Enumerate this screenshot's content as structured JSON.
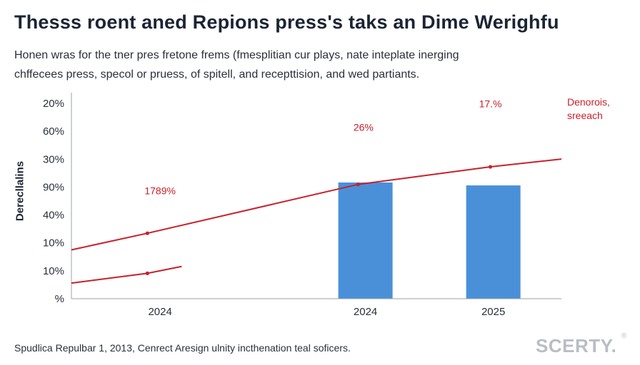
{
  "header": {
    "title": "Thesss roent aned Repions press's taks an Dime Werighfu",
    "subtitle_lines": [
      "Honen wras for the tner pres fretone frems (fmesplitian cur plays, nate inteplate inerging",
      "chffecees press, specol or pruess, of spitell, and recepttision, and wed partiants."
    ]
  },
  "chart_data": {
    "type": "bar",
    "ylabel": "Derecllalins",
    "y_ticks": [
      "20%",
      "60%",
      "30%",
      "90%",
      "40%",
      "10%",
      "10%",
      "%"
    ],
    "x_labels": [
      "2024",
      "2024",
      "2025"
    ],
    "bars": [
      {
        "label": "2024",
        "value_fraction": 0.595
      },
      {
        "label": "2025",
        "value_fraction": 0.58
      }
    ],
    "lines": [
      {
        "name": "Denorois, sreeach",
        "color": "#c8202c",
        "points": [
          [
            0.0,
            0.25
          ],
          [
            0.155,
            0.335
          ],
          [
            0.585,
            0.585
          ],
          [
            0.855,
            0.675
          ],
          [
            1.0,
            0.715
          ]
        ],
        "markers": [
          1,
          2,
          3
        ]
      },
      {
        "name": "",
        "color": "#c8202c",
        "points": [
          [
            0.0,
            0.08
          ],
          [
            0.155,
            0.13
          ],
          [
            0.225,
            0.165
          ]
        ],
        "markers": [
          1
        ]
      }
    ],
    "annotations": [
      "1789%",
      "26%",
      "17.%"
    ],
    "series_label": [
      "Denorois,",
      "sreeach"
    ],
    "bar_color": "#4a90d9",
    "line_color": "#c8202c",
    "grid": false
  },
  "footer": {
    "source": "Spudlica Repulbar 1, 2013, Cenrect Aresign ulnity incthenation teal soficers.",
    "brand": "SCERTY.",
    "brand_mark": "®"
  }
}
